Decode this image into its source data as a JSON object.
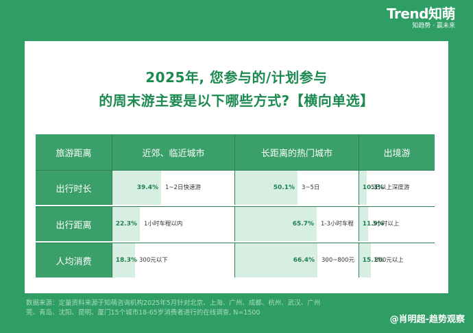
{
  "brand": {
    "name": "Trend知萌",
    "slogan": "知趋势 · 赢未来"
  },
  "chart_data": {
    "type": "table",
    "title_lines": [
      "2025年, 您参与的/计划参与",
      "的周末游主要是以下哪些方式?【横向单选】"
    ],
    "corner_header": "旅游距离",
    "columns": [
      "近郊、临近城市",
      "长距离的热门城市",
      "出境游"
    ],
    "rows": [
      {
        "label": "出行时长",
        "cells": [
          {
            "value": 39.4,
            "pct": "39.4%",
            "text": "1~2日快速游"
          },
          {
            "value": 50.1,
            "pct": "50.1%",
            "text": "3~5日"
          },
          {
            "value": 10.3,
            "pct": "10.3%",
            "text": "5日以上深度游"
          }
        ]
      },
      {
        "label": "出行距离",
        "cells": [
          {
            "value": 22.3,
            "pct": "22.3%",
            "text": "1小时车程以内"
          },
          {
            "value": 65.7,
            "pct": "65.7%",
            "text": "1-3小时车程"
          },
          {
            "value": 11.9,
            "pct": "11.9%",
            "text": "3小时以上"
          }
        ]
      },
      {
        "label": "人均消费",
        "cells": [
          {
            "value": 18.3,
            "pct": "18.3%",
            "text": "300元以下"
          },
          {
            "value": 66.4,
            "pct": "66.4%",
            "text": "300~800元"
          },
          {
            "value": 15.1,
            "pct": "15.1%",
            "text": "800元以上"
          }
        ]
      }
    ]
  },
  "footer": {
    "line1": "数据来源：定量资料来源于知萌咨询机构2025年5月针对北京、上海、广州、成都、杭州、武汉、广州",
    "line2": "莞、青岛、沈阳、昆明、厦门15个城市18-65岁消费者进行的在线调查, N=1500"
  },
  "watermark": "@肖明超-趋势观察",
  "colors": {
    "background": "#2e9e64",
    "title": "#1c8a50",
    "header": "#3a9f69",
    "bar": "#d7efe2"
  }
}
